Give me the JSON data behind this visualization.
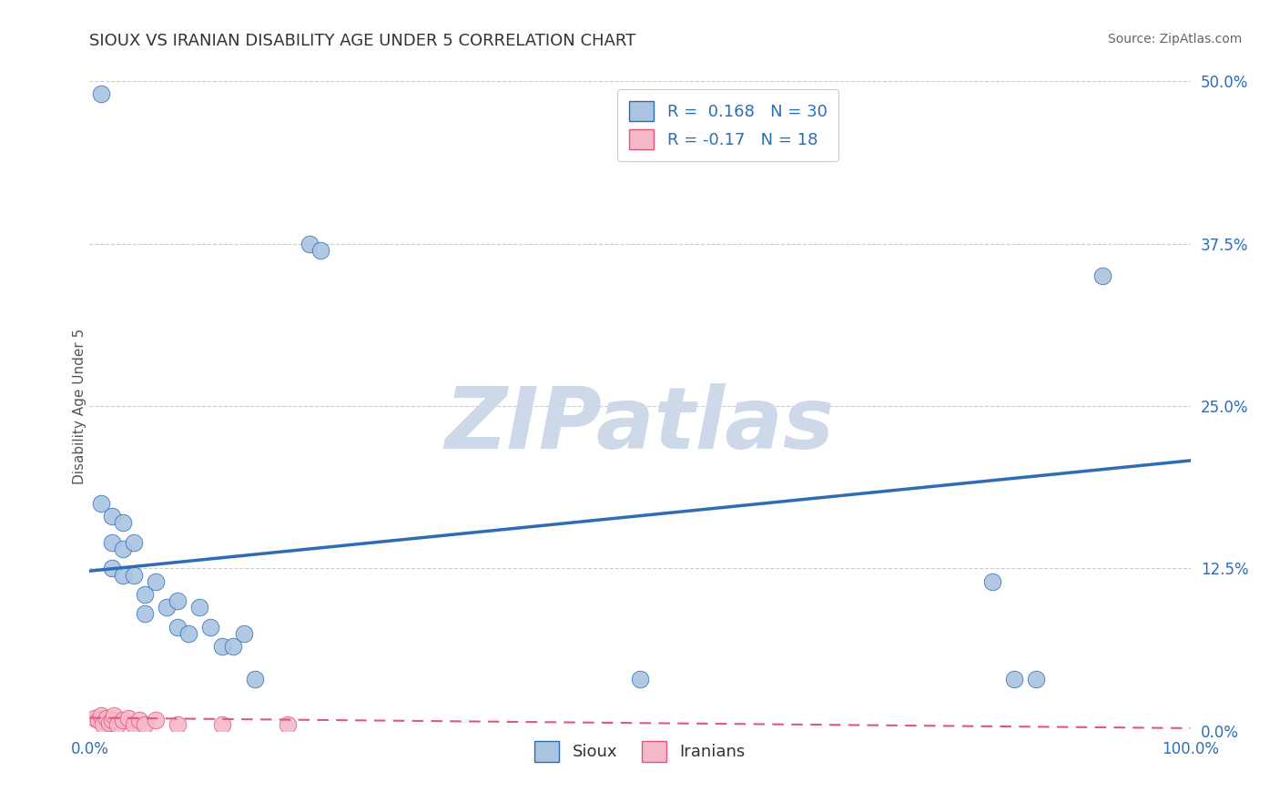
{
  "title": "SIOUX VS IRANIAN DISABILITY AGE UNDER 5 CORRELATION CHART",
  "source": "Source: ZipAtlas.com",
  "ylabel": "Disability Age Under 5",
  "xlim": [
    0,
    1.0
  ],
  "ylim": [
    0,
    0.5
  ],
  "yticks": [
    0.0,
    0.125,
    0.25,
    0.375,
    0.5
  ],
  "ytick_labels": [
    "0.0%",
    "12.5%",
    "25.0%",
    "37.5%",
    "50.0%"
  ],
  "xticks": [
    0.0,
    1.0
  ],
  "xtick_labels": [
    "0.0%",
    "100.0%"
  ],
  "sioux_R": 0.168,
  "sioux_N": 30,
  "iranian_R": -0.17,
  "iranian_N": 18,
  "sioux_color": "#aac4e2",
  "sioux_line_color": "#2e6db4",
  "sioux_edge_color": "#2e6db4",
  "iranian_color": "#f5b8c8",
  "iranian_line_color": "#e05878",
  "iranian_edge_color": "#e05878",
  "sioux_x": [
    0.01,
    0.01,
    0.02,
    0.02,
    0.02,
    0.03,
    0.03,
    0.03,
    0.04,
    0.04,
    0.05,
    0.05,
    0.06,
    0.07,
    0.08,
    0.08,
    0.09,
    0.1,
    0.11,
    0.12,
    0.13,
    0.14,
    0.15,
    0.2,
    0.21,
    0.5,
    0.82,
    0.84,
    0.86,
    0.92
  ],
  "sioux_y": [
    0.49,
    0.175,
    0.165,
    0.145,
    0.125,
    0.16,
    0.14,
    0.12,
    0.145,
    0.12,
    0.105,
    0.09,
    0.115,
    0.095,
    0.1,
    0.08,
    0.075,
    0.095,
    0.08,
    0.065,
    0.065,
    0.075,
    0.04,
    0.375,
    0.37,
    0.04,
    0.115,
    0.04,
    0.04,
    0.35
  ],
  "iranian_x": [
    0.005,
    0.008,
    0.01,
    0.012,
    0.015,
    0.018,
    0.02,
    0.022,
    0.025,
    0.03,
    0.035,
    0.04,
    0.045,
    0.05,
    0.06,
    0.08,
    0.12,
    0.18
  ],
  "iranian_y": [
    0.01,
    0.008,
    0.012,
    0.005,
    0.01,
    0.006,
    0.008,
    0.012,
    0.005,
    0.008,
    0.01,
    0.005,
    0.008,
    0.005,
    0.008,
    0.005,
    0.005,
    0.005
  ],
  "sioux_trend_x": [
    0.0,
    1.0
  ],
  "sioux_trend_y": [
    0.123,
    0.208
  ],
  "iranian_trend_x": [
    0.0,
    1.0
  ],
  "iranian_trend_y": [
    0.01,
    0.002
  ],
  "watermark_text": "ZIPatlas",
  "watermark_color": "#cdd8e8",
  "background_color": "#ffffff",
  "grid_color": "#cccccc",
  "title_color": "#333333",
  "source_color": "#666666",
  "tick_label_color": "#2e6db4",
  "legend_label_color": "#2e6db4",
  "ylabel_color": "#555555"
}
